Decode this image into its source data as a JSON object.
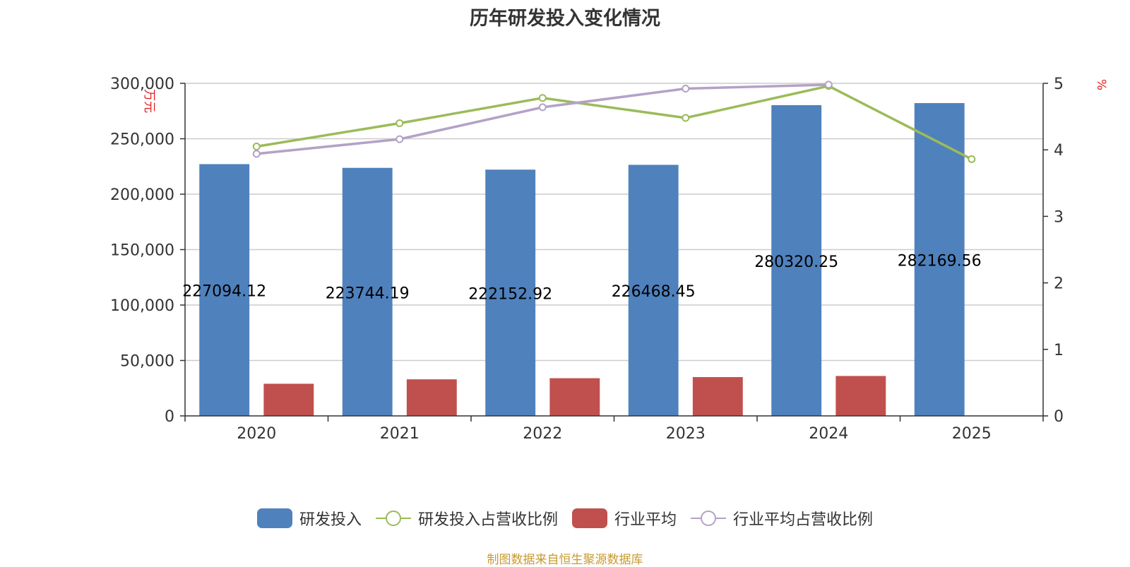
{
  "chart_data": {
    "type": "bar",
    "title": "历年研发投入变化情况",
    "categories": [
      "2020",
      "2021",
      "2022",
      "2023",
      "2024",
      "2025"
    ],
    "y_left": {
      "label": "万元",
      "ylim": [
        0,
        300000
      ],
      "ticks": [
        "0",
        "50,000",
        "100,000",
        "150,000",
        "200,000",
        "250,000",
        "300,000"
      ]
    },
    "y_right": {
      "label": "%",
      "ylim": [
        0,
        5
      ],
      "ticks": [
        "0",
        "1",
        "2",
        "3",
        "4",
        "5"
      ]
    },
    "series": [
      {
        "name": "研发投入",
        "kind": "bar",
        "axis": "left",
        "color": "#4f81bd",
        "values": [
          227094.12,
          223744.19,
          222152.92,
          226468.45,
          280320.25,
          282169.56
        ],
        "labels": [
          "227094.12",
          "223744.19",
          "222152.92",
          "226468.45",
          "280320.25",
          "282169.56"
        ]
      },
      {
        "name": "研发投入占营收比例",
        "kind": "line",
        "axis": "right",
        "color": "#9bbb59",
        "values": [
          4.05,
          4.4,
          4.78,
          4.48,
          4.96,
          3.86
        ]
      },
      {
        "name": "行业平均",
        "kind": "bar",
        "axis": "left",
        "color": "#c0504d",
        "values": [
          29000,
          33000,
          34000,
          35000,
          36000,
          null
        ]
      },
      {
        "name": "行业平均占营收比例",
        "kind": "line",
        "axis": "right",
        "color": "#b3a2c7",
        "values": [
          3.94,
          4.16,
          4.64,
          4.92,
          4.98,
          null
        ]
      }
    ],
    "grid": true,
    "legend_position": "bottom"
  },
  "footer": {
    "source": "制图数据来自恒生聚源数据库"
  }
}
